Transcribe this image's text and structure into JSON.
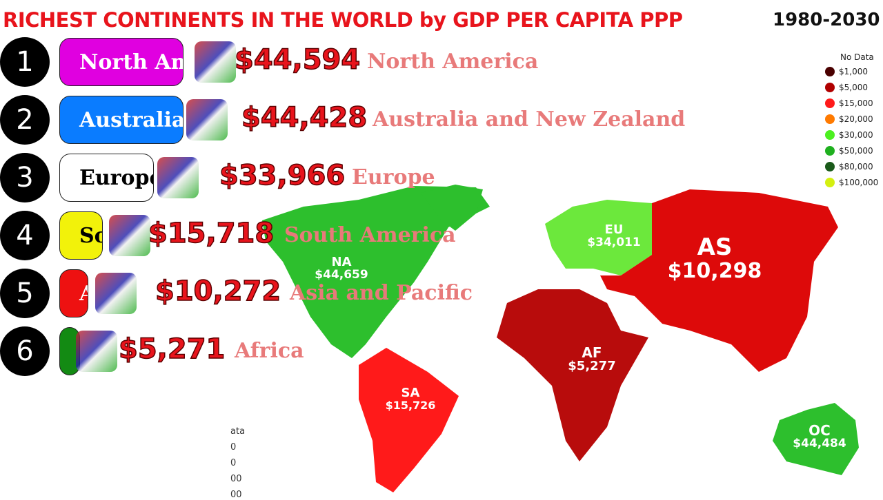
{
  "header": {
    "title": "RICHEST CONTINENTS IN THE WORLD by GDP PER CAPITA PPP",
    "period": "1980-2030"
  },
  "ranking": [
    {
      "rank": "1",
      "bar_label": "North Am",
      "value": "$44,594",
      "name": "North America"
    },
    {
      "rank": "2",
      "bar_label": "Australia",
      "value": "$44,428",
      "name": "Australia and New Zealand"
    },
    {
      "rank": "3",
      "bar_label": "Europe",
      "value": "$33,966",
      "name": "Europe"
    },
    {
      "rank": "4",
      "bar_label": "So",
      "value": "$15,718",
      "name": "South America"
    },
    {
      "rank": "5",
      "bar_label": "A",
      "value": "$10,272",
      "name": "Asia and Pacific"
    },
    {
      "rank": "6",
      "value": "$5,271",
      "name": "Africa"
    }
  ],
  "map_labels": [
    {
      "code": "NA",
      "value": "$44,659"
    },
    {
      "code": "EU",
      "value": "$34,011"
    },
    {
      "code": "AS",
      "value": "$10,298"
    },
    {
      "code": "AF",
      "value": "$5,277"
    },
    {
      "code": "SA",
      "value": "$15,726"
    },
    {
      "code": "OC",
      "value": "$44,484"
    }
  ],
  "legend": {
    "title": "No Data",
    "items": [
      "$1,000",
      "$5,000",
      "$15,000",
      "$20,000",
      "$30,000",
      "$50,000",
      "$80,000",
      "$100,000"
    ]
  },
  "ghost_legend": [
    "ata",
    "0",
    "0",
    "00",
    "00"
  ]
}
